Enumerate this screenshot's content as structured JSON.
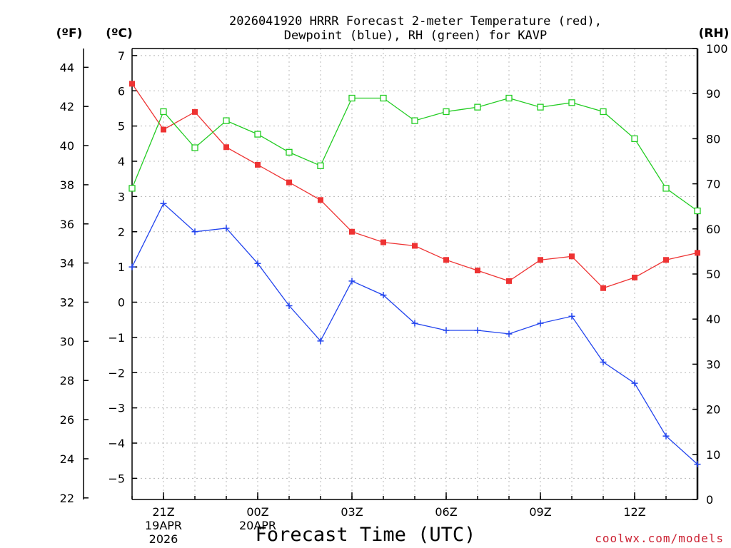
{
  "chart_data": {
    "type": "line",
    "title_lines": [
      "2026041920 HRRR Forecast 2-meter Temperature (red),",
      "Dewpoint (blue), RH (green) for KAVP"
    ],
    "xlabel": "Forecast Time (UTC)",
    "credit": "coolwx.com/models",
    "unit_labels": {
      "fahrenheit": "(ºF)",
      "celsius": "(ºC)",
      "rh": "(RH)"
    },
    "x_hours": [
      0,
      1,
      2,
      3,
      4,
      5,
      6,
      7,
      8,
      9,
      10,
      11,
      12,
      13,
      14,
      15,
      16,
      17,
      18
    ],
    "x_range": [
      0,
      18
    ],
    "x_ticks": [
      {
        "hour": 1,
        "label": "21Z",
        "sub1": "19APR",
        "sub2": "2026"
      },
      {
        "hour": 4,
        "label": "00Z",
        "sub1": "20APR",
        "sub2": ""
      },
      {
        "hour": 7,
        "label": "03Z",
        "sub1": "",
        "sub2": ""
      },
      {
        "hour": 10,
        "label": "06Z",
        "sub1": "",
        "sub2": ""
      },
      {
        "hour": 13,
        "label": "09Z",
        "sub1": "",
        "sub2": ""
      },
      {
        "hour": 16,
        "label": "12Z",
        "sub1": "",
        "sub2": ""
      }
    ],
    "celsius_range": [
      -5.6,
      7.2
    ],
    "celsius_ticks": [
      -5,
      -4,
      -3,
      -2,
      -1,
      0,
      1,
      2,
      3,
      4,
      5,
      6,
      7
    ],
    "celsius_tick_labels": [
      "−5",
      "−4",
      "−3",
      "−2",
      "−1",
      "0",
      "1",
      "2",
      "3",
      "4",
      "5",
      "6",
      "7"
    ],
    "fahrenheit_ticks": [
      22,
      24,
      26,
      28,
      30,
      32,
      34,
      36,
      38,
      40,
      42,
      44
    ],
    "fahrenheit_tick_labels": [
      "22",
      "24",
      "26",
      "28",
      "30",
      "32",
      "34",
      "36",
      "38",
      "40",
      "42",
      "44"
    ],
    "rh_range": [
      0,
      100
    ],
    "rh_ticks": [
      0,
      10,
      20,
      30,
      40,
      50,
      60,
      70,
      80,
      90,
      100
    ],
    "rh_tick_labels": [
      "0",
      "10",
      "20",
      "30",
      "40",
      "50",
      "60",
      "70",
      "80",
      "90",
      "100"
    ],
    "series": [
      {
        "name": "Temperature",
        "axis": "celsius",
        "color": "#ee3333",
        "marker": "filled-square",
        "values": [
          6.2,
          4.9,
          5.4,
          4.4,
          3.9,
          3.4,
          2.9,
          2.0,
          1.7,
          1.6,
          1.2,
          0.9,
          0.6,
          1.2,
          1.3,
          0.4,
          0.7,
          1.2,
          1.4
        ]
      },
      {
        "name": "Dewpoint",
        "axis": "celsius",
        "color": "#2244ee",
        "marker": "plus",
        "values": [
          1.0,
          2.8,
          2.0,
          2.1,
          1.1,
          -0.1,
          -1.1,
          0.6,
          0.2,
          -0.6,
          -0.8,
          -0.8,
          -0.9,
          -0.6,
          -0.4,
          -1.7,
          -2.3,
          -3.8,
          -4.6
        ]
      },
      {
        "name": "RH",
        "axis": "rh",
        "color": "#22cc22",
        "marker": "open-square",
        "values": [
          69,
          86,
          78,
          84,
          81,
          77,
          74,
          89,
          89,
          84,
          86,
          87,
          89,
          87,
          88,
          86,
          80,
          69,
          64
        ]
      }
    ]
  }
}
